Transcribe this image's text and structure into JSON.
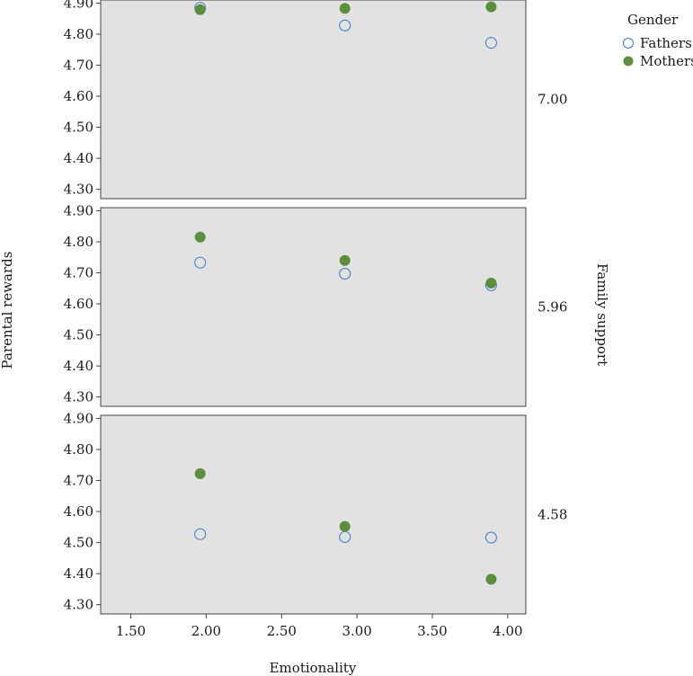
{
  "chart_data": {
    "type": "scatter",
    "xlabel": "Emotionality",
    "ylabel": "Parental rewards",
    "facet_label": "Family support",
    "xlim": [
      1.3,
      4.12
    ],
    "ylim": [
      4.27,
      4.91
    ],
    "x_ticks": [
      "1.50",
      "2.00",
      "2.50",
      "3.00",
      "3.50",
      "4.00"
    ],
    "x_tick_values": [
      1.5,
      2.0,
      2.5,
      3.0,
      3.5,
      4.0
    ],
    "y_ticks": [
      "4.30",
      "4.40",
      "4.50",
      "4.60",
      "4.70",
      "4.80",
      "4.90"
    ],
    "y_tick_values": [
      4.3,
      4.4,
      4.5,
      4.6,
      4.7,
      4.8,
      4.9
    ],
    "legend": {
      "title": "Gender",
      "placement": "top-right",
      "items": [
        {
          "label": "Fathers",
          "marker": "open-circle",
          "color": "#4a7ec7"
        },
        {
          "label": "Mothers",
          "marker": "filled-circle",
          "color": "#5b8e3e"
        }
      ]
    },
    "panel_background": "#e2e2e2",
    "grid": false,
    "panels": [
      {
        "facet_value": "7.00",
        "series": [
          {
            "name": "Fathers",
            "x": [
              1.96,
              2.92,
              3.89
            ],
            "y": [
              4.885,
              4.828,
              4.772
            ]
          },
          {
            "name": "Mothers",
            "x": [
              1.96,
              2.92,
              3.89
            ],
            "y": [
              4.879,
              4.883,
              4.888
            ]
          }
        ]
      },
      {
        "facet_value": "5.96",
        "series": [
          {
            "name": "Fathers",
            "x": [
              1.96,
              2.92,
              3.89
            ],
            "y": [
              4.733,
              4.697,
              4.66
            ]
          },
          {
            "name": "Mothers",
            "x": [
              1.96,
              2.92,
              3.89
            ],
            "y": [
              4.815,
              4.74,
              4.667
            ]
          }
        ]
      },
      {
        "facet_value": "4.58",
        "series": [
          {
            "name": "Fathers",
            "x": [
              1.96,
              2.92,
              3.89
            ],
            "y": [
              4.527,
              4.518,
              4.516
            ]
          },
          {
            "name": "Mothers",
            "x": [
              1.96,
              2.92,
              3.89
            ],
            "y": [
              4.722,
              4.552,
              4.382
            ]
          }
        ]
      }
    ]
  }
}
